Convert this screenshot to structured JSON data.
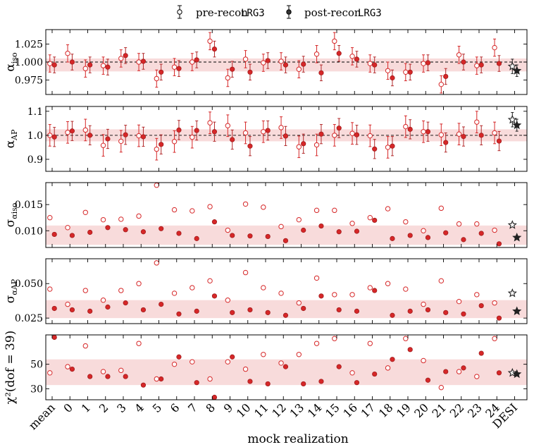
{
  "chart_data": {
    "type": "scatter",
    "legend": {
      "placement": "top-center",
      "pre": {
        "label": "pre-recon",
        "tag": "LRG3"
      },
      "post": {
        "label": "post-recon",
        "tag": "LRG3"
      }
    },
    "xlabel": "mock realization",
    "categories": [
      "mean",
      "0",
      "1",
      "2",
      "3",
      "4",
      "5",
      "6",
      "7",
      "8",
      "9",
      "10",
      "11",
      "12",
      "13",
      "14",
      "15",
      "16",
      "17",
      "18",
      "19",
      "20",
      "21",
      "22",
      "23",
      "24",
      "DESI"
    ],
    "colors": {
      "post_fill": "#d62728",
      "pre_edge": "#d62728",
      "band": "#d62728",
      "desi": "#222222"
    },
    "panels": [
      {
        "id": "alpha_iso",
        "ylabel_sym": "α",
        "ylabel_sub": "iso",
        "ylim": [
          0.955,
          1.045
        ],
        "yticks": [
          0.975,
          1.0,
          1.025
        ],
        "yticklabels": [
          "0.975",
          "1.000",
          "1.025"
        ],
        "refline": 1.0,
        "band": [
          0.987,
          1.005
        ],
        "pre": [
          0.998,
          1.012,
          0.991,
          0.995,
          1.005,
          1.0,
          0.977,
          0.993,
          1.0,
          1.029,
          0.978,
          1.004,
          0.999,
          1.001,
          0.99,
          1.011,
          1.029,
          1.008,
          0.998,
          0.988,
          0.986,
          0.998,
          0.969,
          1.01,
          0.995,
          1.02
        ],
        "post": [
          0.996,
          1.0,
          0.996,
          0.993,
          1.009,
          1.001,
          0.986,
          0.991,
          1.003,
          1.018,
          0.99,
          0.986,
          1.002,
          0.996,
          0.997,
          0.985,
          1.012,
          1.004,
          0.996,
          0.978,
          0.986,
          0.999,
          0.98,
          1.0,
          0.996,
          0.998
        ],
        "pre_err": 0.012,
        "post_err": 0.011,
        "desi": {
          "pre": 0.994,
          "post": 0.988,
          "pre_err": 0.01,
          "post_err": 0.008
        }
      },
      {
        "id": "alpha_ap",
        "ylabel_sym": "α",
        "ylabel_sub": "AP",
        "ylim": [
          0.85,
          1.12
        ],
        "yticks": [
          0.9,
          1.0,
          1.1
        ],
        "yticklabels": [
          "0.9",
          "1.0",
          "1.1"
        ],
        "refline": 1.0,
        "band": [
          0.975,
          1.025
        ],
        "pre": [
          1.0,
          1.012,
          1.022,
          0.958,
          0.975,
          0.998,
          0.942,
          0.974,
          0.992,
          1.052,
          1.04,
          1.01,
          1.015,
          1.032,
          0.952,
          0.96,
          1.0,
          1.008,
          0.998,
          0.95,
          1.036,
          1.015,
          1.002,
          1.005,
          1.055,
          1.01
        ],
        "post": [
          0.993,
          1.018,
          1.0,
          0.985,
          1.002,
          0.994,
          0.962,
          1.022,
          1.02,
          1.015,
          0.982,
          0.955,
          1.02,
          0.997,
          0.965,
          1.005,
          1.03,
          1.002,
          0.943,
          0.955,
          1.025,
          1.015,
          0.97,
          0.995,
          1.0,
          0.976
        ],
        "pre_err": 0.045,
        "post_err": 0.04,
        "desi": {
          "pre": 1.065,
          "post": 1.042,
          "pre_err": 0.03,
          "post_err": 0.025
        }
      },
      {
        "id": "sigma_iso",
        "ylabel_sym": "σ",
        "ylabel_sub": "αiso",
        "ylim": [
          0.0068,
          0.0192
        ],
        "yticks": [
          0.01,
          0.015
        ],
        "yticklabels": [
          "0.010",
          "0.015"
        ],
        "band": [
          0.0073,
          0.011
        ],
        "pre": [
          0.0125,
          0.0106,
          0.0135,
          0.0121,
          0.0122,
          0.0128,
          0.0187,
          0.014,
          0.0138,
          0.0146,
          0.0101,
          0.0151,
          0.0145,
          0.0108,
          0.0121,
          0.0139,
          0.0139,
          0.0114,
          0.0125,
          0.0142,
          0.0117,
          0.01,
          0.0143,
          0.0113,
          0.0113,
          0.0101
        ],
        "post": [
          0.0093,
          0.0091,
          0.0097,
          0.0106,
          0.0102,
          0.0098,
          0.0104,
          0.0095,
          0.0085,
          0.0117,
          0.0091,
          0.009,
          0.0089,
          0.0081,
          0.0101,
          0.0109,
          0.0098,
          0.0099,
          0.012,
          0.0085,
          0.0091,
          0.0087,
          0.0096,
          0.0083,
          0.0095,
          0.0075
        ],
        "desi": {
          "pre": 0.0111,
          "post": 0.0087
        }
      },
      {
        "id": "sigma_ap",
        "ylabel_sym": "σ",
        "ylabel_sub": "αAP",
        "ylim": [
          0.021,
          0.068
        ],
        "yticks": [
          0.025,
          0.05
        ],
        "yticklabels": [
          "0.025",
          "0.050"
        ],
        "band": [
          0.025,
          0.038
        ],
        "pre": [
          0.046,
          0.035,
          0.045,
          0.038,
          0.045,
          0.05,
          0.065,
          0.043,
          0.047,
          0.052,
          0.038,
          0.058,
          0.047,
          0.043,
          0.036,
          0.054,
          0.042,
          0.042,
          0.047,
          0.05,
          0.046,
          0.035,
          0.052,
          0.037,
          0.042,
          0.036
        ],
        "post": [
          0.032,
          0.031,
          0.03,
          0.033,
          0.036,
          0.031,
          0.035,
          0.028,
          0.03,
          0.041,
          0.029,
          0.031,
          0.029,
          0.027,
          0.032,
          0.041,
          0.031,
          0.03,
          0.045,
          0.027,
          0.03,
          0.031,
          0.029,
          0.028,
          0.034,
          0.025
        ],
        "desi": {
          "pre": 0.043,
          "post": 0.03
        }
      },
      {
        "id": "chi2",
        "ylabel_text": "χ²(dof = 39)",
        "ylim": [
          21,
          74
        ],
        "yticks": [
          30,
          50
        ],
        "yticklabels": [
          "30",
          "50"
        ],
        "band": [
          33,
          54
        ],
        "pre": [
          43,
          48,
          65,
          44,
          45,
          67,
          38,
          50,
          52,
          38,
          52,
          46,
          58,
          51,
          58,
          67,
          71,
          43,
          67,
          47,
          71,
          53,
          31,
          44,
          40,
          71
        ],
        "post": [
          72,
          46,
          40,
          40,
          40,
          33,
          38,
          56,
          35,
          23,
          56,
          36,
          34,
          48,
          34,
          36,
          48,
          35,
          42,
          54,
          62,
          37,
          44,
          47,
          59,
          43
        ],
        "desi": {
          "pre": 43,
          "post": 42
        }
      }
    ]
  }
}
